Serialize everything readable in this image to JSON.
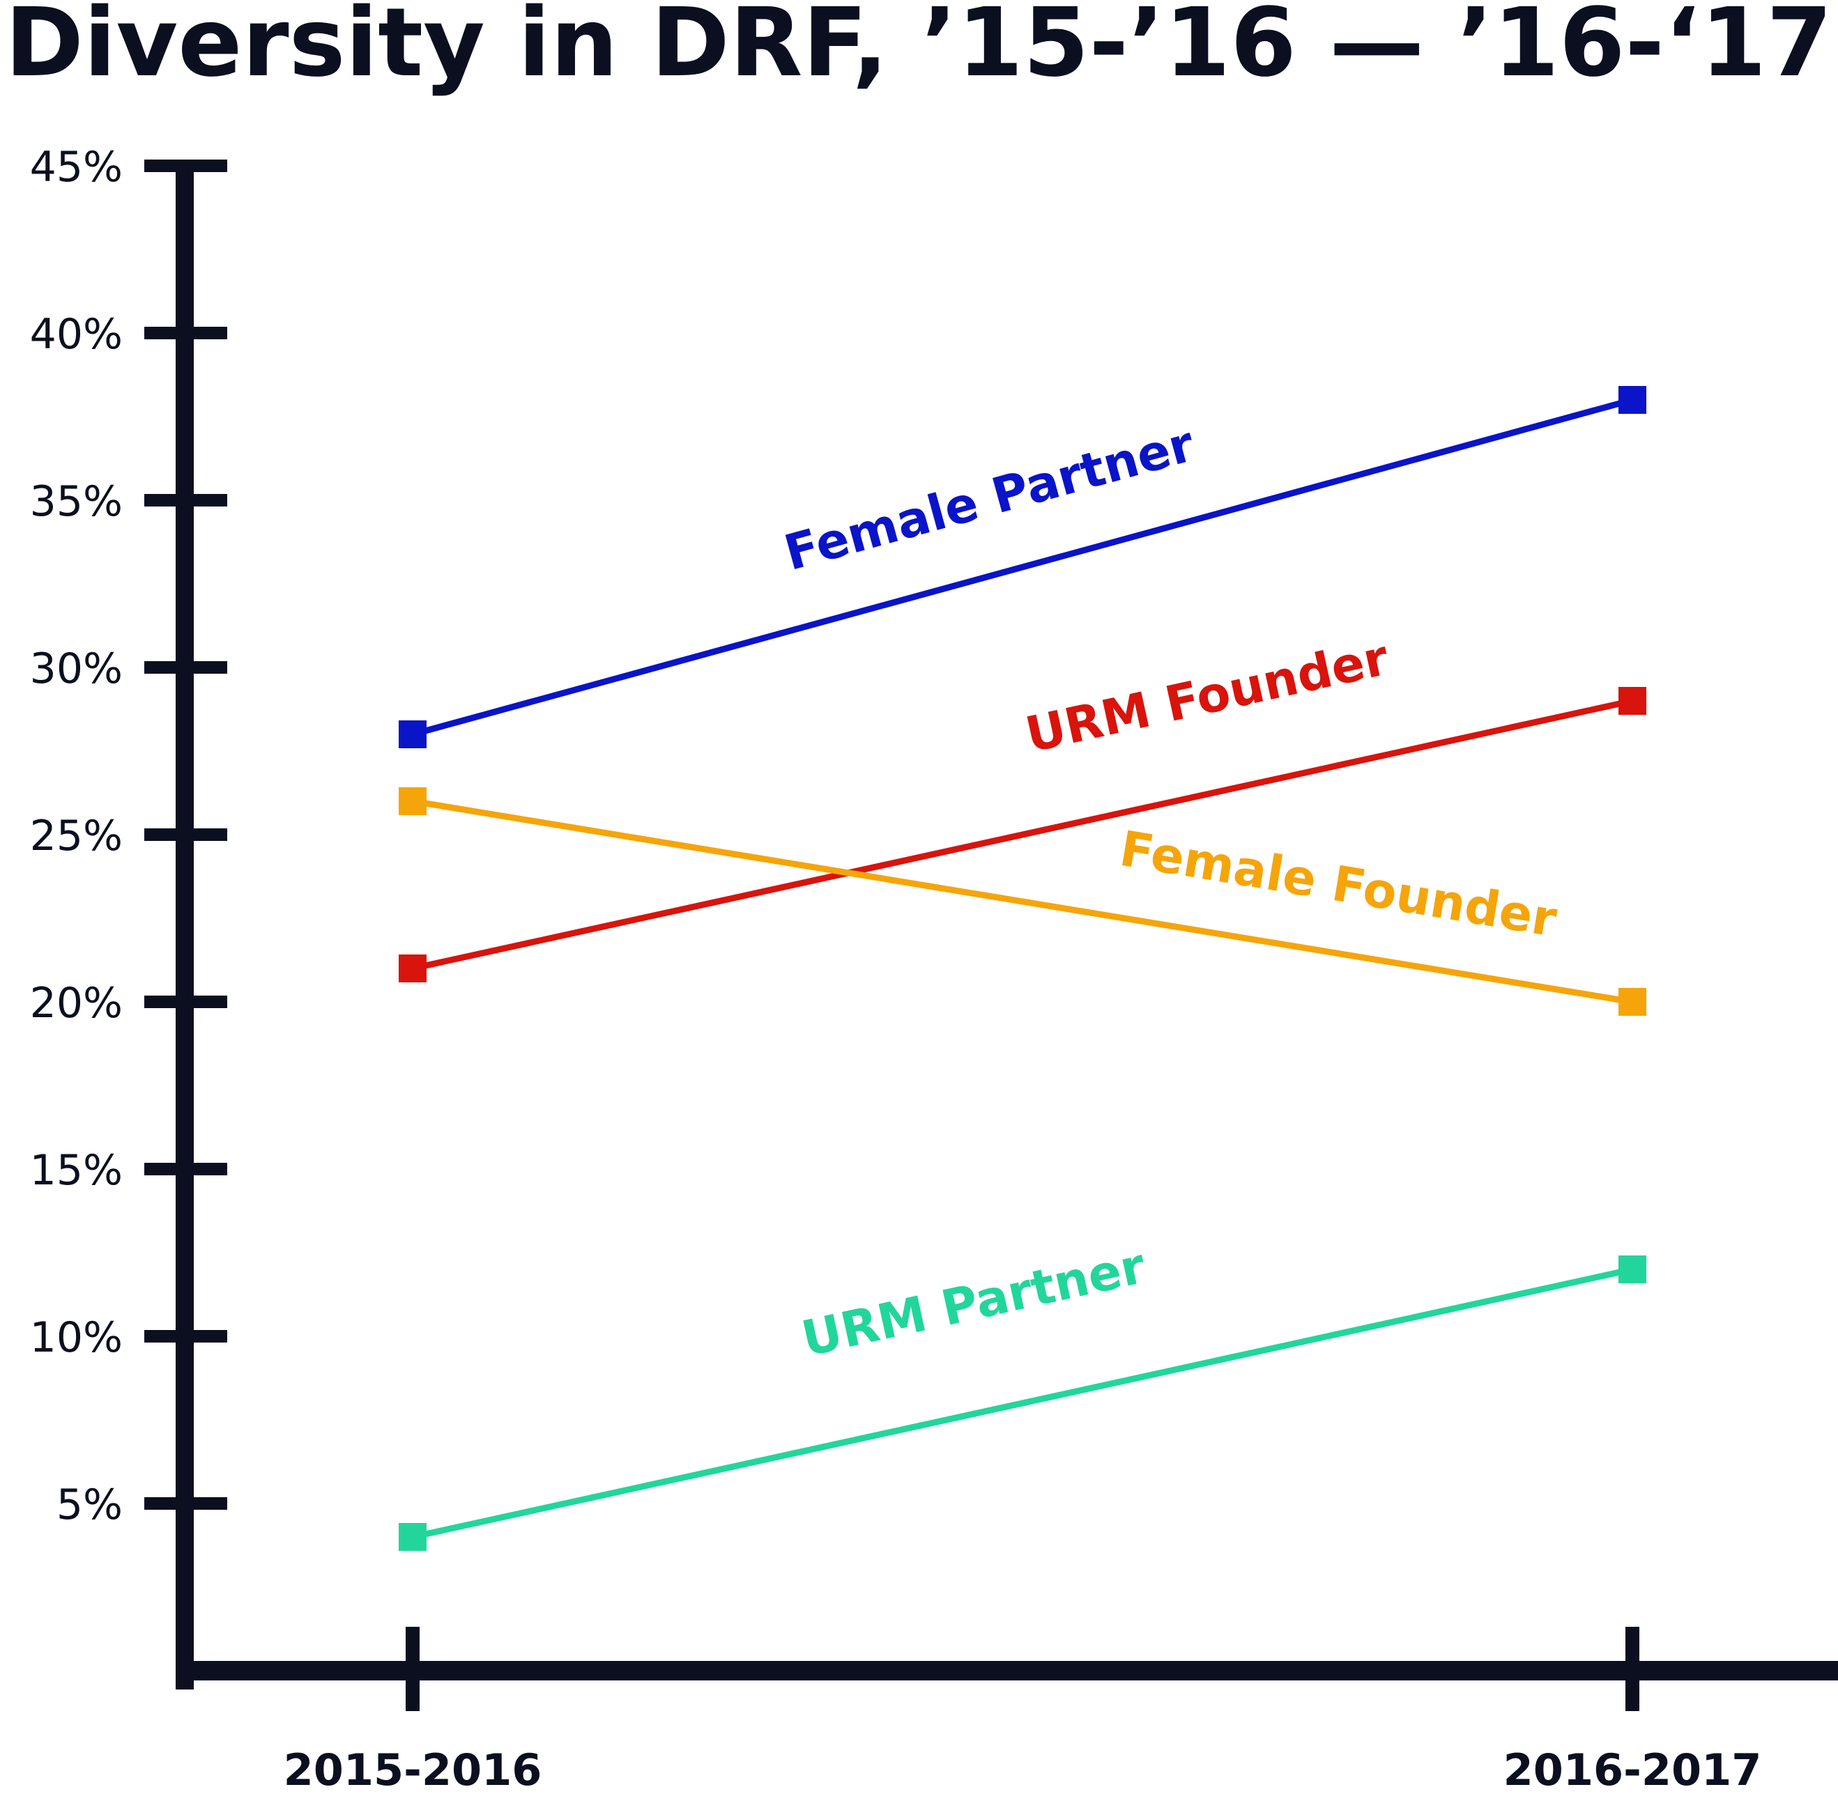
{
  "chart_data": {
    "type": "line",
    "title": "Diversity in DRF, ’15-’16 — ’16-‘17",
    "xlabel": "",
    "ylabel": "",
    "categories": [
      "2015-2016",
      "2016-2017"
    ],
    "yticks": [
      {
        "value": 5,
        "label": "5%"
      },
      {
        "value": 10,
        "label": "10%"
      },
      {
        "value": 15,
        "label": "15%"
      },
      {
        "value": 20,
        "label": "20%"
      },
      {
        "value": 25,
        "label": "25%"
      },
      {
        "value": 30,
        "label": "30%"
      },
      {
        "value": 35,
        "label": "35%"
      },
      {
        "value": 40,
        "label": "40%"
      },
      {
        "value": 45,
        "label": "45%"
      }
    ],
    "ylim": [
      0,
      45
    ],
    "grid": false,
    "legend": "inline labels",
    "series": [
      {
        "name": "Female Partner",
        "color": "#0a14c8",
        "values": [
          28,
          38
        ]
      },
      {
        "name": "URM Founder",
        "color": "#d8140c",
        "values": [
          21,
          29
        ]
      },
      {
        "name": "Female Founder",
        "color": "#f5a50a",
        "values": [
          26,
          20
        ]
      },
      {
        "name": "URM Partner",
        "color": "#22d69b",
        "values": [
          4,
          12
        ]
      }
    ]
  }
}
